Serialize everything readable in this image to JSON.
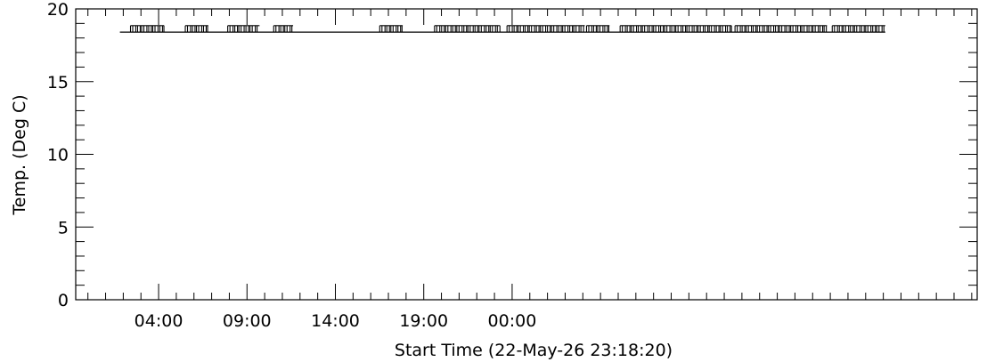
{
  "chart_data": {
    "type": "line",
    "title": "",
    "xlabel": "Start Time (22-May-26 23:18:20)",
    "ylabel": "Temp. (Deg C)",
    "x_unit": "hours after 23:18:20",
    "xlim": [
      0,
      51
    ],
    "ylim": [
      0,
      20
    ],
    "x_ticks": [
      {
        "value": 4.69,
        "label": "04:00"
      },
      {
        "value": 9.69,
        "label": "09:00"
      },
      {
        "value": 14.69,
        "label": "14:00"
      },
      {
        "value": 19.69,
        "label": "19:00"
      },
      {
        "value": 24.69,
        "label": "00:00"
      }
    ],
    "y_ticks": [
      {
        "value": 0,
        "label": "0"
      },
      {
        "value": 5,
        "label": "5"
      },
      {
        "value": 10,
        "label": "10"
      },
      {
        "value": 15,
        "label": "15"
      },
      {
        "value": 20,
        "label": "20"
      }
    ],
    "y_minor_step": 1,
    "series": [
      {
        "baseline": 18.4,
        "x_range": [
          2.5,
          45.8
        ],
        "spike_top": 18.85,
        "spike_clusters": [
          [
            3.1,
            5.0
          ],
          [
            6.2,
            7.5
          ],
          [
            8.6,
            10.4
          ],
          [
            11.2,
            12.3
          ],
          [
            17.2,
            18.5
          ],
          [
            20.3,
            24.0
          ],
          [
            24.4,
            28.8
          ],
          [
            28.9,
            30.2
          ],
          [
            30.8,
            37.1
          ],
          [
            37.3,
            42.5
          ],
          [
            42.8,
            45.8
          ]
        ]
      }
    ]
  }
}
